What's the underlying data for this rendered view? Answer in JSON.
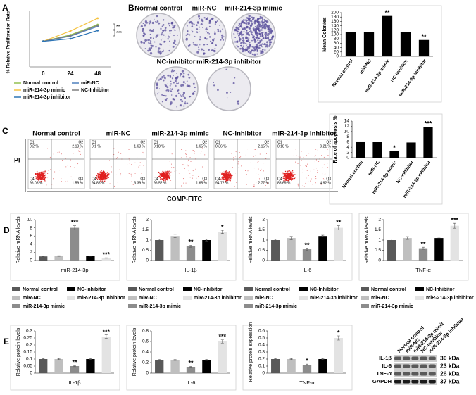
{
  "panel_labels": [
    "A",
    "B",
    "C",
    "D",
    "E"
  ],
  "groups": [
    {
      "name": "Normal control",
      "color": "#595959"
    },
    {
      "name": "miR-NC",
      "color": "#bfbfbf"
    },
    {
      "name": "miR-214-3p mimic",
      "color": "#8c8c8c"
    },
    {
      "name": "NC-Inhibitor",
      "color": "#000000"
    },
    {
      "name": "miR-214-3p inhibitor",
      "color": "#e3e3e3"
    }
  ],
  "colony_plates": {
    "labels": [
      "Normal control",
      "miR-NC",
      "miR-214-3p mimic",
      "NC-inhibitor",
      "miR-214-3p inhibitor"
    ]
  },
  "flow_cytometry": {
    "y_label": "PI",
    "x_label": "COMP-FITC",
    "quadrant_names": [
      "Q1",
      "Q2",
      "Q3",
      "Q4"
    ],
    "plots": [
      {
        "title": "Normal control",
        "q1": "0.2 %",
        "q2": "2.13 %",
        "q3": "1.59 %",
        "q4": "96.08 %"
      },
      {
        "title": "miR-NC",
        "q1": "0.1 %",
        "q2": "1.63 %",
        "q3": "3.39 %",
        "q4": "94.88 %"
      },
      {
        "title": "miR-214-3p mimic",
        "q1": "0.18 %",
        "q2": "1.65 %",
        "q3": "1.65 %",
        "q4": "96.52 %"
      },
      {
        "title": "NC-inhibitor",
        "q1": "0.36 %",
        "q2": "2.15 %",
        "q3": "2.77 %",
        "q4": "94.72 %"
      },
      {
        "title": "miR-214-3p inhibitor",
        "q1": "0.18 %",
        "q2": "9.21 %",
        "q3": "4.92 %",
        "q4": "85.69 %"
      }
    ]
  },
  "western_blot": {
    "lanes": [
      "Normal control",
      "miR-NC",
      "miR-214-3p mimic",
      "NC-inhibitor",
      "miR-214-3p inhibitor"
    ],
    "bands": [
      {
        "protein": "IL-1β",
        "size": "30 kDa"
      },
      {
        "protein": "IL-6",
        "size": "23 kDa"
      },
      {
        "protein": "TNF-α",
        "size": "26 kDa"
      },
      {
        "protein": "GAPDH",
        "size": "37 kDa"
      }
    ]
  },
  "chart_data": [
    {
      "type": "line",
      "ylabel": "% Relative Proliferation Rate",
      "categories": [
        "0",
        "24",
        "48"
      ],
      "ylim": [
        0,
        220
      ],
      "series": [
        {
          "name": "Normal control",
          "color": "#92c050",
          "values": [
            100,
            125,
            165
          ]
        },
        {
          "name": "miR-NC",
          "color": "#4f81bd",
          "values": [
            100,
            120,
            158
          ]
        },
        {
          "name": "miR-214-3p mimic",
          "color": "#f5c342",
          "values": [
            100,
            140,
            190
          ]
        },
        {
          "name": "NC-Inhibitor",
          "color": "#7f7f7f",
          "values": [
            100,
            122,
            162
          ]
        },
        {
          "name": "miR-214-3p inhibitor",
          "color": "#2e75b6",
          "values": [
            100,
            110,
            142
          ]
        }
      ],
      "annotations": [
        "**",
        "***"
      ]
    },
    {
      "type": "bar",
      "ylabel": "Mean Colonies",
      "categories": [
        "Normal control",
        "miR-NC",
        "miR-214-3p mimic",
        "NC-inhibitor",
        "miR-214-3p inhibitor"
      ],
      "values": [
        110,
        110,
        185,
        110,
        75
      ],
      "color": "#000000",
      "ylim": [
        0,
        200
      ],
      "yticks": [
        0,
        20,
        40,
        60,
        80,
        100,
        120,
        140,
        160,
        180,
        200
      ],
      "annotations": [
        null,
        null,
        "**",
        null,
        "**"
      ]
    },
    {
      "type": "bar",
      "ylabel": "Rate of apoptosis %",
      "categories": [
        "Normal control",
        "miR-NC",
        "miR-214-3p mimic",
        "NC-inhibitor",
        "miR-214-3p inhibitor"
      ],
      "values": [
        6.2,
        6.0,
        2.5,
        5.8,
        11.8
      ],
      "color": "#000000",
      "ylim": [
        0,
        14
      ],
      "yticks": [
        0,
        2,
        4,
        6,
        8,
        10,
        12,
        14
      ],
      "annotations": [
        null,
        null,
        "*",
        null,
        "***"
      ]
    },
    {
      "type": "bar",
      "ylabel": "Relative mRNA levels",
      "xlabel": "miR-214-3p",
      "values": [
        1,
        1.1,
        8,
        1.1,
        0.6
      ],
      "errors": [
        0.05,
        0.08,
        0.5,
        0.06,
        0.05
      ],
      "ylim": [
        0,
        10
      ],
      "yticks": [
        0,
        2,
        4,
        6,
        8,
        10
      ],
      "annotations": [
        null,
        null,
        "***",
        null,
        "***"
      ]
    },
    {
      "type": "bar",
      "ylabel": "Relative mRNA levels",
      "xlabel": "IL-1β",
      "values": [
        1,
        1.2,
        0.7,
        1,
        1.4
      ],
      "errors": [
        0.04,
        0.08,
        0.05,
        0.04,
        0.08
      ],
      "ylim": [
        0,
        2
      ],
      "yticks": [
        0,
        0.5,
        1,
        1.5,
        2
      ],
      "annotations": [
        null,
        null,
        "**",
        null,
        "*"
      ]
    },
    {
      "type": "bar",
      "ylabel": "Relative mRNA levels",
      "xlabel": "IL-6",
      "values": [
        1,
        1.1,
        0.55,
        1.2,
        1.6
      ],
      "errors": [
        0.04,
        0.08,
        0.05,
        0.04,
        0.1
      ],
      "ylim": [
        0,
        2
      ],
      "yticks": [
        0,
        0.5,
        1,
        1.5,
        2
      ],
      "annotations": [
        null,
        null,
        "**",
        null,
        "**"
      ]
    },
    {
      "type": "bar",
      "ylabel": "Relative mRNA levels",
      "xlabel": "TNF-α",
      "values": [
        1,
        1.1,
        0.6,
        1.1,
        1.7
      ],
      "errors": [
        0.05,
        0.07,
        0.05,
        0.04,
        0.12
      ],
      "ylim": [
        0,
        2
      ],
      "yticks": [
        0,
        0.5,
        1,
        1.5,
        2
      ],
      "annotations": [
        null,
        null,
        "**",
        null,
        "***"
      ]
    },
    {
      "type": "bar",
      "ylabel": "Relative protein levels",
      "xlabel": "IL-1β",
      "values": [
        0.1,
        0.1,
        0.05,
        0.1,
        0.26
      ],
      "errors": [
        0.003,
        0.004,
        0.004,
        0.003,
        0.012
      ],
      "ylim": [
        0,
        0.3
      ],
      "yticks": [
        0,
        0.05,
        0.1,
        0.15,
        0.2,
        0.25,
        0.3
      ],
      "annotations": [
        null,
        null,
        "**",
        null,
        "***"
      ]
    },
    {
      "type": "bar",
      "ylabel": "Relative protein levels",
      "xlabel": "IL-6",
      "values": [
        0.25,
        0.25,
        0.12,
        0.25,
        0.6
      ],
      "errors": [
        0.01,
        0.01,
        0.01,
        0.01,
        0.03
      ],
      "ylim": [
        0,
        0.8
      ],
      "yticks": [
        0,
        0.2,
        0.4,
        0.6,
        0.8
      ],
      "annotations": [
        null,
        null,
        "**",
        null,
        "***"
      ]
    },
    {
      "type": "bar",
      "ylabel": "Relative protein expression",
      "xlabel": "TNF-α",
      "values": [
        0.2,
        0.2,
        0.12,
        0.2,
        0.5
      ],
      "errors": [
        0.008,
        0.008,
        0.008,
        0.008,
        0.03
      ],
      "ylim": [
        0,
        0.6
      ],
      "yticks": [
        0,
        0.1,
        0.2,
        0.3,
        0.4,
        0.5,
        0.6
      ],
      "annotations": [
        null,
        null,
        "*",
        null,
        "*"
      ]
    }
  ]
}
